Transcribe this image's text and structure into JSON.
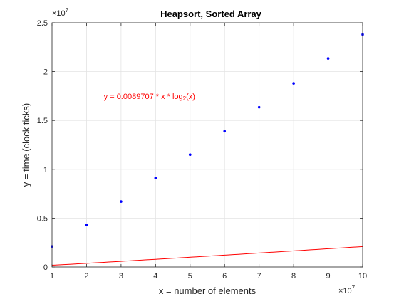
{
  "chart_data": {
    "type": "line",
    "title": "Heapsort, Sorted Array",
    "xlabel": "x = number of elements",
    "ylabel": "y = time (clock ticks)",
    "x_multiplier_label": "×10",
    "x_multiplier_exponent": "7",
    "y_multiplier_label": "×10",
    "y_multiplier_exponent": "7",
    "annotation": {
      "text_main": "y = 0.0089707 * x * log",
      "text_sub": "2",
      "text_end": "(x)",
      "color": "#ff0000",
      "x": 2500000,
      "y": 17200000
    },
    "xlim": [
      1000000,
      10000000
    ],
    "ylim": [
      0,
      25000000
    ],
    "x_ticks": [
      1000000,
      2000000,
      3000000,
      4000000,
      5000000,
      6000000,
      7000000,
      8000000,
      9000000,
      10000000
    ],
    "x_tick_labels": [
      "1",
      "2",
      "3",
      "4",
      "5",
      "6",
      "7",
      "8",
      "9",
      "10"
    ],
    "y_ticks": [
      0,
      5000000,
      10000000,
      15000000,
      20000000,
      25000000
    ],
    "y_tick_labels": [
      "0",
      "0.5",
      "1",
      "1.5",
      "2",
      "2.5"
    ],
    "grid": true,
    "series": [
      {
        "kind": "markers",
        "color": "#0000ff",
        "x": [
          1000000,
          2000000,
          3000000,
          4000000,
          5000000,
          6000000,
          7000000,
          8000000,
          9000000,
          10000000
        ],
        "y": [
          2100000,
          4300000,
          6700000,
          9100000,
          11500000,
          13900000,
          16350000,
          18800000,
          21350000,
          23800000
        ]
      },
      {
        "kind": "fit",
        "color": "#ff0000",
        "coefficient": 0.0089707,
        "samples": 60
      }
    ]
  }
}
